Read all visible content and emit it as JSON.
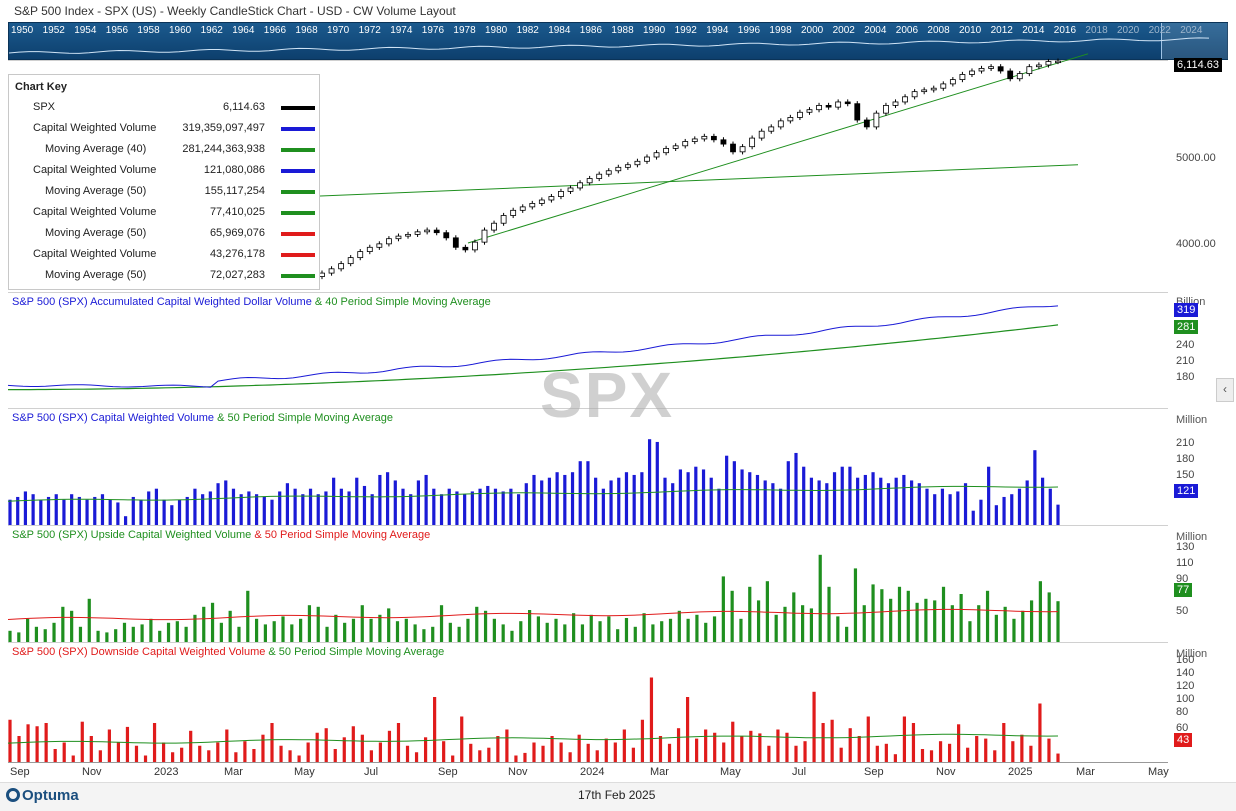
{
  "header": {
    "title": "S&P 500 Index - SPX (US) - Weekly CandleStick Chart - USD - CW Volume Layout"
  },
  "timeline": {
    "years": [
      "1950",
      "1952",
      "1954",
      "1956",
      "1958",
      "1960",
      "1962",
      "1964",
      "1966",
      "1968",
      "1970",
      "1972",
      "1974",
      "1976",
      "1978",
      "1980",
      "1982",
      "1984",
      "1986",
      "1988",
      "1990",
      "1992",
      "1994",
      "1996",
      "1998",
      "2000",
      "2002",
      "2004",
      "2006",
      "2008",
      "2010",
      "2012",
      "2014",
      "2016",
      "2018",
      "2020",
      "2022",
      "2024"
    ]
  },
  "chart_key": {
    "title": "Chart Key",
    "rows": [
      {
        "name": "SPX",
        "value": "6,114.63",
        "color": "#000000",
        "indent": false
      },
      {
        "name": "Capital Weighted Volume",
        "value": "319,359,097,497",
        "color": "#1a1ad6",
        "indent": false
      },
      {
        "name": "Moving Average (40)",
        "value": "281,244,363,938",
        "color": "#1f8f1f",
        "indent": true
      },
      {
        "name": "Capital Weighted Volume",
        "value": "121,080,086",
        "color": "#1a1ad6",
        "indent": false
      },
      {
        "name": "Moving Average (50)",
        "value": "155,117,254",
        "color": "#1f8f1f",
        "indent": true
      },
      {
        "name": "Capital Weighted Volume",
        "value": "77,410,025",
        "color": "#1f8f1f",
        "indent": false
      },
      {
        "name": "Moving Average (50)",
        "value": "65,969,076",
        "color": "#e01b1b",
        "indent": true
      },
      {
        "name": "Capital Weighted Volume",
        "value": "43,276,178",
        "color": "#e01b1b",
        "indent": false
      },
      {
        "name": "Moving Average (50)",
        "value": "72,027,283",
        "color": "#1f8f1f",
        "indent": true
      }
    ]
  },
  "panels": {
    "price": {
      "last_label": "6,114.63",
      "ticks": [
        "5000.00",
        "4000.00"
      ],
      "tick_values": [
        5000,
        4000
      ]
    },
    "accum": {
      "label_a": "S&P 500 (SPX)  Accumulated Capital Weighted Dollar Volume",
      "label_b": "& 40 Period Simple Moving Average",
      "unit": "Billion",
      "ticks": [
        "240",
        "210",
        "180"
      ],
      "tick_values": [
        240,
        210,
        180
      ],
      "last_a": "319",
      "last_b": "281"
    },
    "cwv": {
      "label_a": "S&P 500 (SPX)  Capital Weighted Volume",
      "label_b": "& 50 Period Simple Moving Average",
      "unit": "Million",
      "ticks": [
        "210",
        "180",
        "150"
      ],
      "tick_values": [
        210,
        180,
        150
      ],
      "last": "121"
    },
    "upside": {
      "label_a": "S&P 500 (SPX)  Upside Capital Weighted Volume",
      "label_b": "& 50 Period Simple Moving Average",
      "unit": "Million",
      "ticks": [
        "130",
        "110",
        "90",
        "50"
      ],
      "tick_values": [
        130,
        110,
        90,
        50
      ],
      "last": "77"
    },
    "downside": {
      "label_a": "S&P 500 (SPX)  Downside Capital Weighted Volume",
      "label_b": "& 50 Period Simple Moving Average",
      "unit": "Million",
      "ticks": [
        "160",
        "140",
        "120",
        "100",
        "80",
        "60"
      ],
      "tick_values": [
        160,
        140,
        120,
        100,
        80,
        60
      ],
      "last": "43"
    }
  },
  "watermark": "SPX",
  "x_axis": {
    "labels": [
      "Sep",
      "Nov",
      "2023",
      "Mar",
      "May",
      "Jul",
      "Sep",
      "Nov",
      "2024",
      "Mar",
      "May",
      "Jul",
      "Sep",
      "Nov",
      "2025",
      "Mar",
      "May"
    ]
  },
  "footer": {
    "logo": "Optuma",
    "date": "17th Feb 2025"
  },
  "chart_data": [
    {
      "type": "candlestick",
      "title": "S&P 500 Index - SPX (US) - Weekly CandleStick Chart - USD - CW Volume Layout",
      "series": [
        {
          "name": "SPX",
          "last": 6114.63
        }
      ],
      "y_ticks": [
        4000,
        5000
      ],
      "closes_sample": [
        3650,
        3700,
        3760,
        3830,
        3900,
        3950,
        3990,
        4050,
        4080,
        4100,
        4130,
        4150,
        4120,
        4060,
        3950,
        3920,
        4010,
        4150,
        4230,
        4320,
        4380,
        4420,
        4460,
        4500,
        4540,
        4600,
        4640,
        4700,
        4750,
        4800,
        4840,
        4880,
        4910,
        4950,
        5000,
        5050,
        5100,
        5130,
        5180,
        5210,
        5240,
        5200,
        5150,
        5060,
        5120,
        5220,
        5300,
        5350,
        5420,
        5460,
        5520,
        5550,
        5600,
        5580,
        5640,
        5620,
        5430,
        5350,
        5510,
        5600,
        5640,
        5700,
        5760,
        5780,
        5800,
        5850,
        5900,
        5960,
        6000,
        6030,
        6050,
        6000,
        5910,
        5970,
        6050,
        6070,
        6110,
        6114.63
      ]
    },
    {
      "type": "line",
      "title": "S&P 500 (SPX)  Accumulated Capital Weighted Dollar Volume & 40 Period Simple Moving Average",
      "ylabel": "Billion",
      "series": [
        {
          "name": "Accumulated Capital Weighted Dollar Volume",
          "last": 319
        },
        {
          "name": "40 Period Simple Moving Average",
          "last": 281
        }
      ]
    },
    {
      "type": "bar",
      "title": "S&P 500 (SPX)  Capital Weighted Volume & 50 Period Simple Moving Average",
      "ylabel": "Million",
      "series": [
        {
          "name": "Capital Weighted Volume",
          "values": [
            130,
            135,
            145,
            140,
            130,
            135,
            140,
            130,
            140,
            135,
            130,
            135,
            140,
            130,
            125,
            100,
            135,
            130,
            145,
            150,
            130,
            120,
            130,
            135,
            150,
            140,
            145,
            160,
            165,
            150,
            140,
            145,
            140,
            135,
            130,
            145,
            160,
            150,
            140,
            150,
            140,
            145,
            170,
            150,
            145,
            170,
            155,
            140,
            175,
            180,
            165,
            150,
            140,
            165,
            175,
            150,
            140,
            150,
            145,
            140,
            145,
            150,
            155,
            150,
            145,
            150,
            140,
            160,
            175,
            165,
            170,
            180,
            175,
            180,
            200,
            200,
            170,
            150,
            165,
            170,
            180,
            175,
            180,
            240,
            235,
            170,
            160,
            185,
            180,
            190,
            185,
            170,
            150,
            210,
            200,
            185,
            180,
            175,
            165,
            160,
            150,
            200,
            215,
            190,
            170,
            165,
            160,
            180,
            190,
            190,
            170,
            175,
            180,
            170,
            160,
            170,
            175,
            165,
            160,
            150,
            140,
            150,
            140,
            145,
            160,
            110,
            130,
            190,
            120,
            135,
            140,
            150,
            165,
            220,
            170,
            150,
            121
          ]
        },
        {
          "name": "50 Period Simple Moving Average",
          "last": 155
        }
      ]
    },
    {
      "type": "bar",
      "title": "S&P 500 (SPX)  Upside Capital Weighted Volume & 50 Period Simple Moving Average",
      "ylabel": "Million",
      "series": [
        {
          "name": "Upside Capital Weighted Volume",
          "values": [
            40,
            38,
            55,
            45,
            42,
            50,
            70,
            65,
            45,
            80,
            40,
            38,
            42,
            50,
            45,
            48,
            55,
            40,
            50,
            52,
            45,
            60,
            70,
            75,
            50,
            65,
            45,
            90,
            55,
            48,
            52,
            58,
            48,
            55,
            72,
            70,
            45,
            60,
            50,
            55,
            72,
            55,
            60,
            68,
            52,
            55,
            48,
            42,
            45,
            72,
            50,
            45,
            55,
            70,
            65,
            55,
            48,
            40,
            52,
            66,
            58,
            50,
            55,
            48,
            62,
            48,
            60,
            52,
            58,
            42,
            56,
            45,
            62,
            48,
            52,
            55,
            65,
            55,
            60,
            50,
            58,
            108,
            90,
            55,
            95,
            78,
            102,
            60,
            70,
            88,
            72,
            68,
            135,
            95,
            58,
            45,
            118,
            72,
            98,
            92,
            80,
            95,
            90,
            75,
            80,
            78,
            95,
            72,
            86,
            52,
            72,
            90,
            60,
            70,
            55,
            65,
            78,
            102,
            88,
            77
          ]
        },
        {
          "name": "50 Period Simple Moving Average",
          "last": 66
        }
      ]
    },
    {
      "type": "bar",
      "title": "S&P 500 (SPX)  Downside Capital Weighted Volume & 50 Period Simple Moving Average",
      "ylabel": "Million",
      "series": [
        {
          "name": "Downside Capital Weighted Volume",
          "values": [
            95,
            70,
            88,
            85,
            90,
            50,
            60,
            40,
            92,
            70,
            48,
            80,
            60,
            84,
            55,
            40,
            90,
            60,
            45,
            52,
            78,
            55,
            48,
            60,
            80,
            45,
            62,
            50,
            72,
            90,
            55,
            48,
            40,
            60,
            75,
            82,
            50,
            68,
            85,
            72,
            48,
            60,
            78,
            90,
            55,
            45,
            68,
            130,
            62,
            40,
            100,
            58,
            48,
            52,
            70,
            80,
            40,
            44,
            60,
            55,
            70,
            60,
            45,
            72,
            58,
            48,
            66,
            60,
            80,
            52,
            95,
            160,
            70,
            58,
            82,
            130,
            66,
            80,
            75,
            60,
            92,
            70,
            78,
            74,
            55,
            80,
            75,
            55,
            62,
            138,
            90,
            95,
            52,
            82,
            70,
            100,
            55,
            58,
            42,
            100,
            90,
            50,
            48,
            62,
            58,
            88,
            52,
            70,
            66,
            48,
            90,
            62,
            72,
            55,
            120,
            66,
            43
          ]
        },
        {
          "name": "50 Period Simple Moving Average",
          "last": 72
        }
      ]
    }
  ]
}
